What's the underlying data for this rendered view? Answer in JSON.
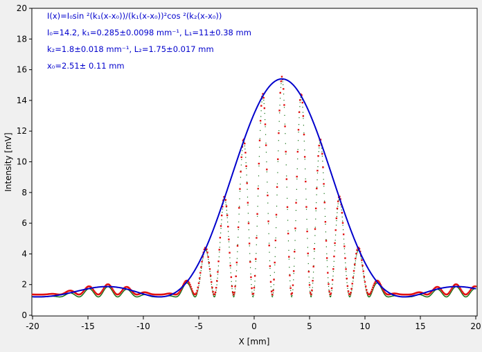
{
  "chart_data": {
    "type": "scatter",
    "xlabel": "X [mm]",
    "ylabel": "Intensity [mV]",
    "xlim": [
      -20,
      20
    ],
    "ylim": [
      0,
      20
    ],
    "x_ticks": [
      -20,
      -15,
      -10,
      -5,
      0,
      5,
      10,
      15,
      20
    ],
    "y_ticks": [
      0,
      2,
      4,
      6,
      8,
      10,
      12,
      14,
      16,
      18,
      20
    ],
    "grid": false,
    "annotations": [
      "I(x)=I₀sin ²(k₁(x-x₀))/(k₁(x-x₀))²cos ²(k₂(x-x₀))",
      "I₀=14.2,  k₁=0.285±0.0098 mm⁻¹,   L₁=11±0.38 mm",
      "k₂=1.8±0.018 mm⁻¹,   L₂=1.75±0.017 mm",
      "x₀=2.51±  0.11 mm"
    ],
    "model": {
      "I0": 14.2,
      "k1": 0.285,
      "k2": 1.8,
      "x0": 2.51,
      "offset": 1.2
    },
    "series": [
      {
        "role": "envelope",
        "x_range": [
          -20,
          20
        ],
        "color": "#0000cc"
      },
      {
        "role": "measured",
        "x_range": [
          -20,
          20
        ],
        "color": "#e01010"
      },
      {
        "role": "fit",
        "x_range": [
          -20,
          20
        ],
        "color": "#0a6b0a"
      }
    ]
  }
}
